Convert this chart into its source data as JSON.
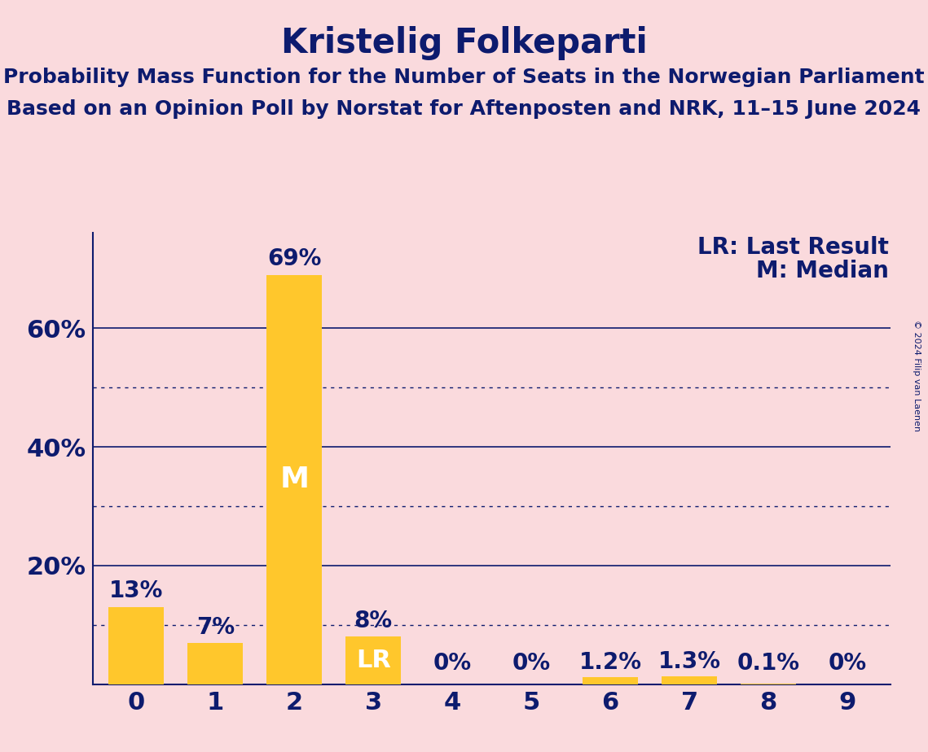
{
  "title": "Kristelig Folkeparti",
  "subtitle1": "Probability Mass Function for the Number of Seats in the Norwegian Parliament",
  "subtitle2": "Based on an Opinion Poll by Norstat for Aftenposten and NRK, 11–15 June 2024",
  "copyright": "© 2024 Filip van Laenen",
  "seats": [
    0,
    1,
    2,
    3,
    4,
    5,
    6,
    7,
    8,
    9
  ],
  "probabilities": [
    0.13,
    0.07,
    0.69,
    0.08,
    0.0,
    0.0,
    0.012,
    0.013,
    0.001,
    0.0
  ],
  "prob_labels": [
    "13%",
    "7%",
    "69%",
    "8%",
    "0%",
    "0%",
    "1.2%",
    "1.3%",
    "0.1%",
    "0%"
  ],
  "median_seat": 2,
  "lr_seat": 3,
  "bar_color": "#FFC72C",
  "bg_color": "#FADADD",
  "text_color": "#0D1B6E",
  "grid_color": "#0D1B6E",
  "label_above_color": "#0D1B6E",
  "label_inside_color": "#FFFFFF",
  "title_fontsize": 30,
  "subtitle_fontsize": 18,
  "tick_fontsize": 22,
  "label_fontsize": 20,
  "legend_fontsize": 20,
  "marker_fontsize": 26,
  "ylim": [
    0,
    0.76
  ],
  "yticks": [
    0.2,
    0.4,
    0.6
  ],
  "ytick_labels": [
    "20%",
    "40%",
    "60%"
  ],
  "dotted_lines": [
    0.1,
    0.3,
    0.5
  ],
  "solid_lines": [
    0.2,
    0.4,
    0.6
  ]
}
